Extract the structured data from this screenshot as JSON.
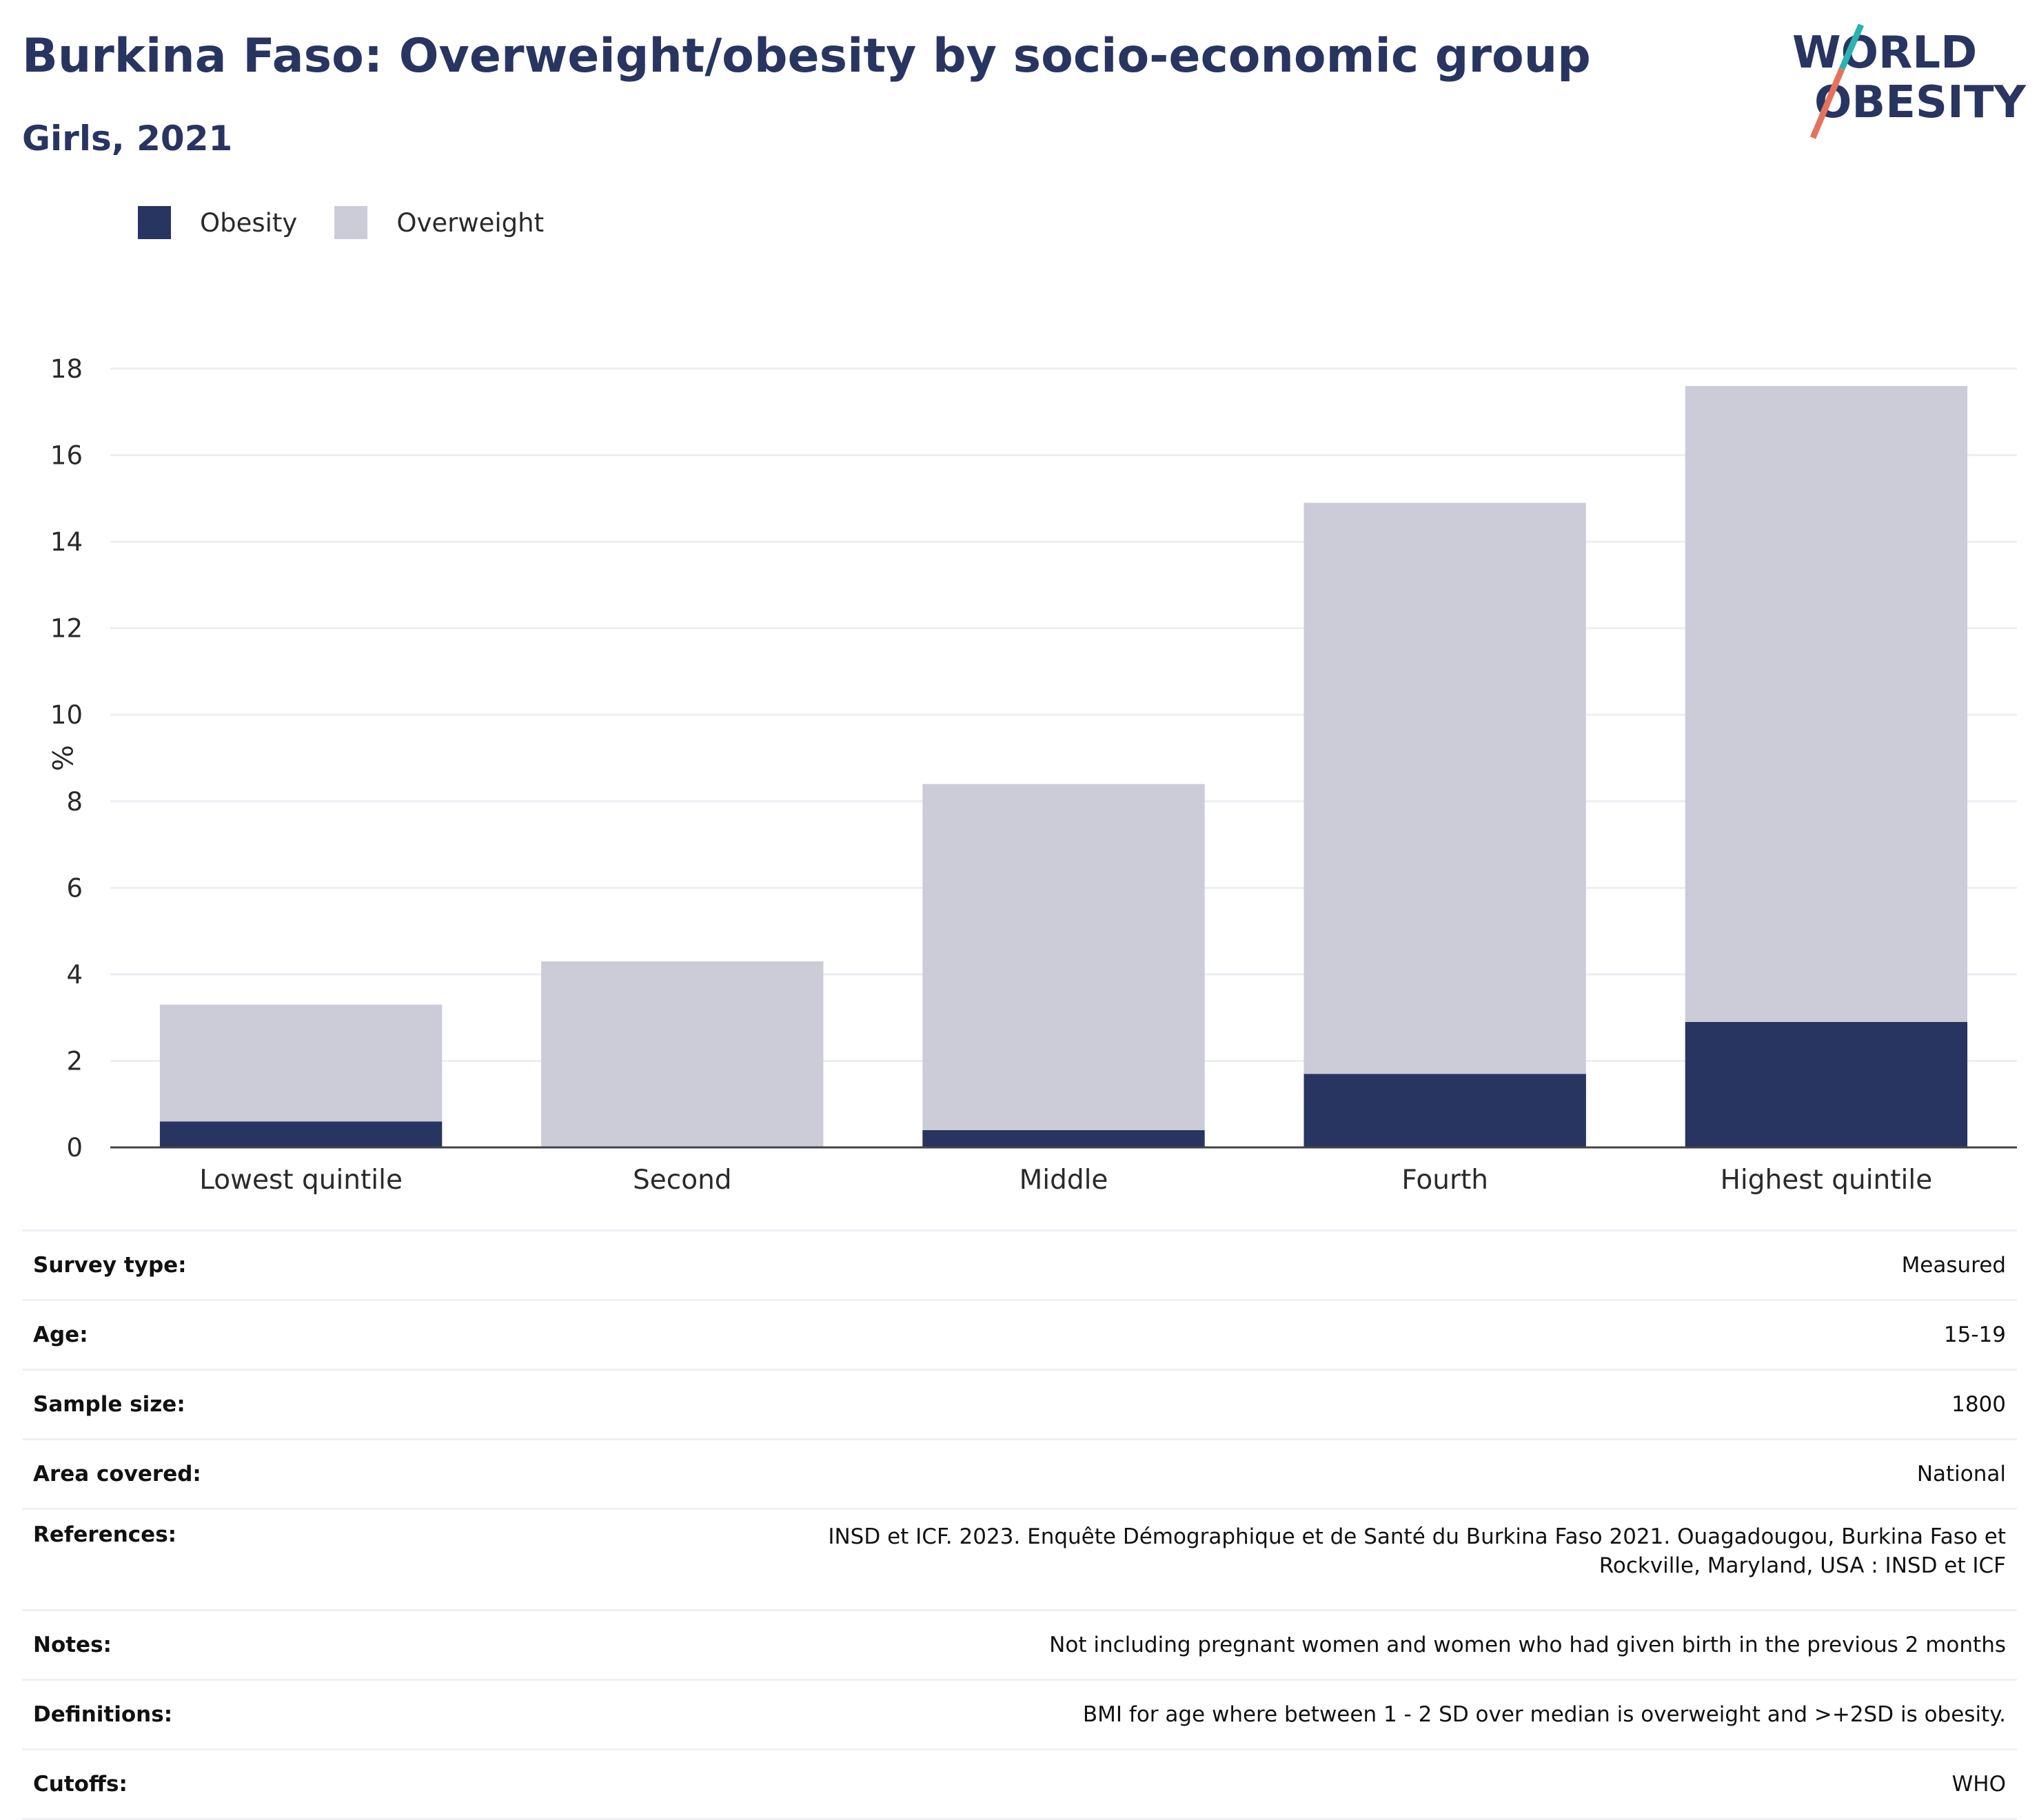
{
  "header": {
    "title": "Burkina Faso: Overweight/obesity by socio-economic group",
    "subtitle": "Girls, 2021"
  },
  "logo": {
    "line1": "WORLD",
    "line2": "OBESITY",
    "colors": {
      "text": "#283561",
      "slash_top": "#2bb3b1",
      "slash_bottom": "#e4735e"
    }
  },
  "legend": [
    {
      "label": "Obesity",
      "color": "#283561"
    },
    {
      "label": "Overweight",
      "color": "#cbccd8"
    }
  ],
  "chart_data": {
    "type": "bar",
    "stacked": true,
    "categories": [
      "Lowest quintile",
      "Second",
      "Middle",
      "Fourth",
      "Highest quintile"
    ],
    "series": [
      {
        "name": "Obesity",
        "color": "#283561",
        "values": [
          0.6,
          0.0,
          0.4,
          1.7,
          2.9
        ]
      },
      {
        "name": "Overweight",
        "color": "#cbccd8",
        "values": [
          2.7,
          4.3,
          8.0,
          13.2,
          14.7
        ]
      }
    ],
    "ylabel": "%",
    "ylim": [
      0,
      18
    ],
    "yticks": [
      0,
      2,
      4,
      6,
      8,
      10,
      12,
      14,
      16,
      18
    ],
    "grid": true
  },
  "info": [
    {
      "label": "Survey type:",
      "value": "Measured"
    },
    {
      "label": "Age:",
      "value": "15-19"
    },
    {
      "label": "Sample size:",
      "value": "1800"
    },
    {
      "label": "Area covered:",
      "value": "National"
    },
    {
      "label": "References:",
      "value": "INSD et ICF. 2023. Enquête Démographique et de Santé du Burkina Faso 2021. Ouagadougou, Burkina Faso et Rockville, Maryland, USA : INSD et ICF"
    },
    {
      "label": "Notes:",
      "value": "Not including pregnant women and women who had given birth in the previous 2 months"
    },
    {
      "label": "Definitions:",
      "value": "BMI for age where between 1 - 2 SD over median is overweight and >+2SD is obesity."
    },
    {
      "label": "Cutoffs:",
      "value": "WHO"
    }
  ]
}
